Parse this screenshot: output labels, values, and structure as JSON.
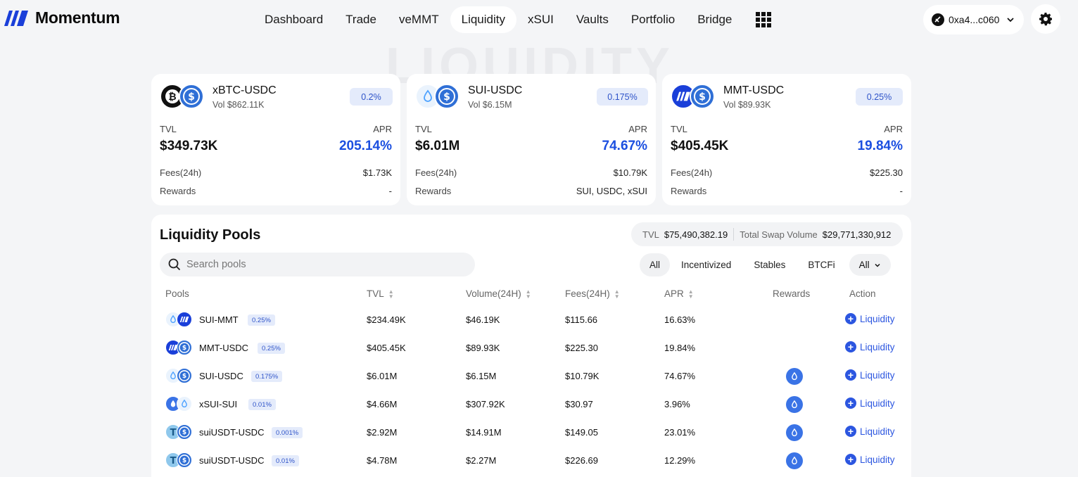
{
  "header": {
    "logo_text": "Momentum",
    "nav": [
      "Dashboard",
      "Trade",
      "veMMT",
      "Liquidity",
      "xSUI",
      "Vaults",
      "Portfolio",
      "Bridge"
    ],
    "active_nav": "Liquidity",
    "wallet_address": "0xa4...c060"
  },
  "background_word": "LIQUIDITY",
  "featured": [
    {
      "pair": "xBTC-USDC",
      "vol": "Vol $862.11K",
      "fee": "0.2%",
      "tvl_label": "TVL",
      "tvl": "$349.73K",
      "apr_label": "APR",
      "apr": "205.14%",
      "fees_label": "Fees(24h)",
      "fees": "$1.73K",
      "rewards_label": "Rewards",
      "rewards": "-"
    },
    {
      "pair": "SUI-USDC",
      "vol": "Vol $6.15M",
      "fee": "0.175%",
      "tvl_label": "TVL",
      "tvl": "$6.01M",
      "apr_label": "APR",
      "apr": "74.67%",
      "fees_label": "Fees(24h)",
      "fees": "$10.79K",
      "rewards_label": "Rewards",
      "rewards": "SUI, USDC, xSUI"
    },
    {
      "pair": "MMT-USDC",
      "vol": "Vol $89.93K",
      "fee": "0.25%",
      "tvl_label": "TVL",
      "tvl": "$405.45K",
      "apr_label": "APR",
      "apr": "19.84%",
      "fees_label": "Fees(24h)",
      "fees": "$225.30",
      "rewards_label": "Rewards",
      "rewards": "-"
    }
  ],
  "pools": {
    "title": "Liquidity Pools",
    "tvl_label": "TVL",
    "tvl_value": "$75,490,382.19",
    "swap_label": "Total Swap Volume",
    "swap_value": "$29,771,330,912",
    "search_placeholder": "Search pools",
    "filters": [
      "All",
      "Incentivized",
      "Stables",
      "BTCFi"
    ],
    "select_value": "All",
    "columns": {
      "pools": "Pools",
      "tvl": "TVL",
      "volume": "Volume(24H)",
      "fees": "Fees(24H)",
      "apr": "APR",
      "rewards": "Rewards",
      "action": "Action"
    },
    "action_label": "Liquidity",
    "rows": [
      {
        "name": "SUI-MMT",
        "fee": "0.25%",
        "tvl": "$234.49K",
        "volume": "$46.19K",
        "fees": "$115.66",
        "apr": "16.63%",
        "rewards_icon": "none",
        "icons": [
          "sui",
          "mmt"
        ]
      },
      {
        "name": "MMT-USDC",
        "fee": "0.25%",
        "tvl": "$405.45K",
        "volume": "$89.93K",
        "fees": "$225.30",
        "apr": "19.84%",
        "rewards_icon": "none",
        "icons": [
          "mmt",
          "usdc"
        ]
      },
      {
        "name": "SUI-USDC",
        "fee": "0.175%",
        "tvl": "$6.01M",
        "volume": "$6.15M",
        "fees": "$10.79K",
        "apr": "74.67%",
        "rewards_icon": "sui-drop-icon",
        "icons": [
          "sui",
          "usdc"
        ]
      },
      {
        "name": "xSUI-SUI",
        "fee": "0.01%",
        "tvl": "$4.66M",
        "volume": "$307.92K",
        "fees": "$30.97",
        "apr": "3.96%",
        "rewards_icon": "sui-drop-icon",
        "icons": [
          "xsui",
          "sui"
        ]
      },
      {
        "name": "suiUSDT-USDC",
        "fee": "0.001%",
        "tvl": "$2.92M",
        "volume": "$14.91M",
        "fees": "$149.05",
        "apr": "23.01%",
        "rewards_icon": "sui-drop-icon",
        "icons": [
          "usdt",
          "usdc"
        ]
      },
      {
        "name": "suiUSDT-USDC",
        "fee": "0.01%",
        "tvl": "$4.78M",
        "volume": "$2.27M",
        "fees": "$226.69",
        "apr": "12.29%",
        "rewards_icon": "sui-drop-icon",
        "icons": [
          "usdt",
          "usdc"
        ]
      }
    ]
  },
  "colors": {
    "accent": "#1b4fe0",
    "badge_bg": "#e4ebfb",
    "page_bg": "#f4f5f7"
  }
}
